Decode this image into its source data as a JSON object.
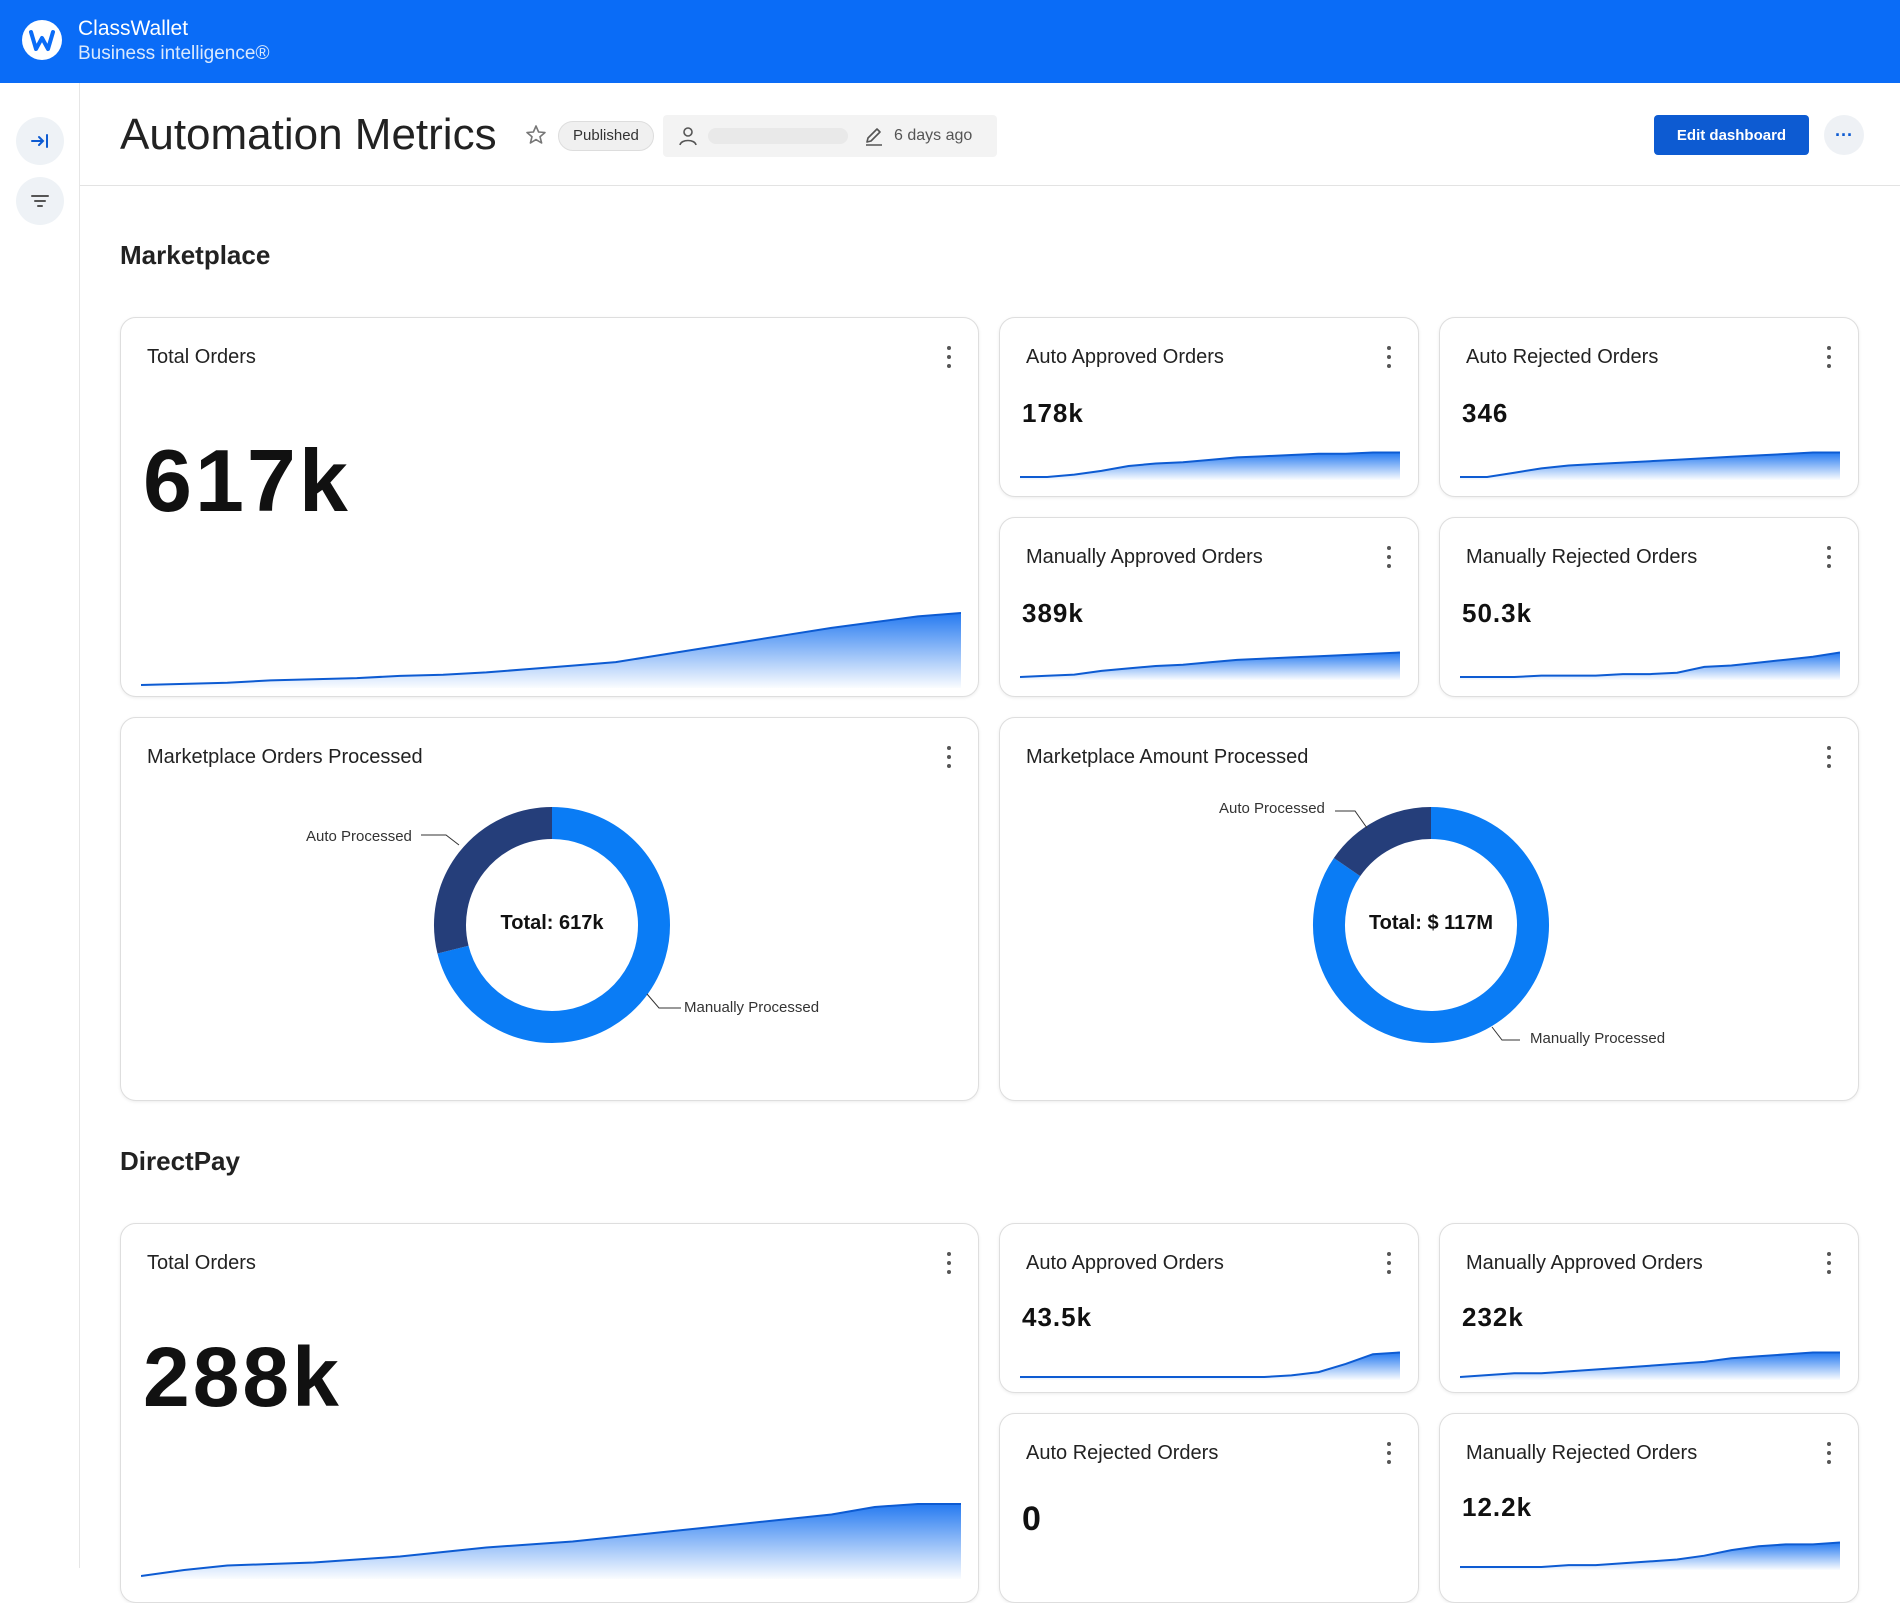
{
  "app": {
    "name": "ClassWallet",
    "subtitle": "Business intelligence®"
  },
  "header": {
    "title": "Automation Metrics",
    "status_badge": "Published",
    "edited_ago": "6 days ago",
    "edit_button": "Edit dashboard",
    "more_button": "···"
  },
  "icons": [
    "classwallet-logo-icon",
    "expand-sidebar-icon",
    "filter-icon",
    "star-icon",
    "user-icon",
    "pencil-icon",
    "more-icon",
    "kebab-icon"
  ],
  "colors": {
    "brand": "#0a6cf7",
    "accent": "#0d5bd2",
    "donut_dark": "#253e7a",
    "donut_light": "#0a7cf5"
  },
  "marketplace": {
    "section_title": "Marketplace",
    "total_orders": {
      "title": "Total Orders",
      "value": "617k"
    },
    "auto_approved": {
      "title": "Auto Approved Orders",
      "value": "178k"
    },
    "auto_rejected": {
      "title": "Auto Rejected Orders",
      "value": "346"
    },
    "manually_approved": {
      "title": "Manually Approved Orders",
      "value": "389k"
    },
    "manually_rejected": {
      "title": "Manually Rejected Orders",
      "value": "50.3k"
    },
    "orders_processed": {
      "title": "Marketplace Orders Processed",
      "center": "Total: 617k",
      "label_auto": "Auto Processed",
      "label_manual": "Manually Processed"
    },
    "amount_processed": {
      "title": "Marketplace Amount Processed",
      "center": "Total: $ 117M",
      "label_auto": "Auto Processed",
      "label_manual": "Manually Processed"
    }
  },
  "directpay": {
    "section_title": "DirectPay",
    "total_orders": {
      "title": "Total Orders",
      "value": "288k"
    },
    "auto_approved": {
      "title": "Auto Approved Orders",
      "value": "43.5k"
    },
    "manually_approved": {
      "title": "Manually Approved Orders",
      "value": "232k"
    },
    "auto_rejected": {
      "title": "Auto Rejected Orders",
      "value": "0"
    },
    "manually_rejected": {
      "title": "Manually Rejected Orders",
      "value": "12.2k"
    }
  },
  "chart_data": [
    {
      "type": "pie",
      "title": "Marketplace Orders Processed",
      "categories": [
        "Auto Processed",
        "Manually Processed"
      ],
      "values": [
        178346,
        439300
      ]
    },
    {
      "type": "pie",
      "title": "Marketplace Amount Processed",
      "categories": [
        "Auto Processed",
        "Manually Processed"
      ],
      "values": [
        18,
        99
      ]
    }
  ]
}
